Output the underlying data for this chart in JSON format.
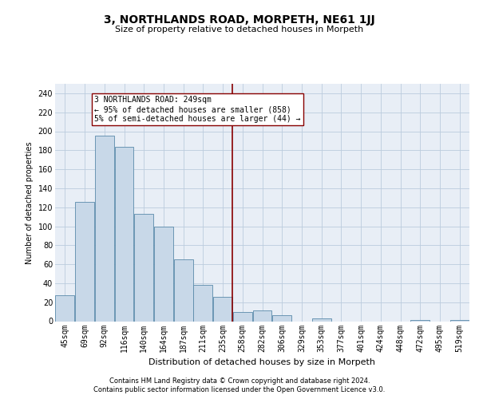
{
  "title": "3, NORTHLANDS ROAD, MORPETH, NE61 1JJ",
  "subtitle": "Size of property relative to detached houses in Morpeth",
  "xlabel": "Distribution of detached houses by size in Morpeth",
  "ylabel": "Number of detached properties",
  "bar_labels": [
    "45sqm",
    "69sqm",
    "92sqm",
    "116sqm",
    "140sqm",
    "164sqm",
    "187sqm",
    "211sqm",
    "235sqm",
    "258sqm",
    "282sqm",
    "306sqm",
    "329sqm",
    "353sqm",
    "377sqm",
    "401sqm",
    "424sqm",
    "448sqm",
    "472sqm",
    "495sqm",
    "519sqm"
  ],
  "bar_values": [
    27,
    126,
    195,
    184,
    113,
    100,
    65,
    38,
    26,
    10,
    11,
    6,
    0,
    3,
    0,
    0,
    0,
    0,
    1,
    0,
    1
  ],
  "bar_color": "#c8d8e8",
  "bar_edgecolor": "#5a8aaa",
  "grid_color": "#bbccdd",
  "vline_x": 8.5,
  "vline_color": "#880000",
  "annotation_text": "3 NORTHLANDS ROAD: 249sqm\n← 95% of detached houses are smaller (858)\n5% of semi-detached houses are larger (44) →",
  "annotation_box_edgecolor": "#880000",
  "ylim": [
    0,
    250
  ],
  "yticks": [
    0,
    20,
    40,
    60,
    80,
    100,
    120,
    140,
    160,
    180,
    200,
    220,
    240
  ],
  "footer_line1": "Contains HM Land Registry data © Crown copyright and database right 2024.",
  "footer_line2": "Contains public sector information licensed under the Open Government Licence v3.0.",
  "plot_bg_color": "#e8eef6",
  "title_fontsize": 10,
  "subtitle_fontsize": 8,
  "ylabel_fontsize": 7,
  "xlabel_fontsize": 8,
  "tick_fontsize": 7,
  "ann_fontsize": 7,
  "footer_fontsize": 6
}
